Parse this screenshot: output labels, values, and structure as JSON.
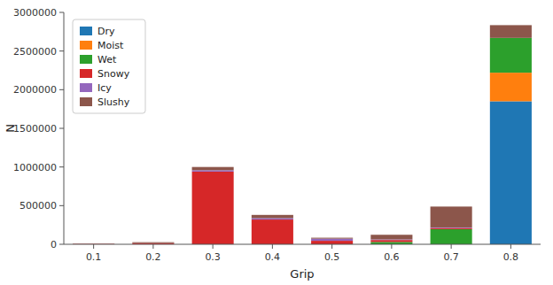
{
  "chart_data": {
    "type": "bar",
    "stacked": true,
    "categories": [
      "0.1",
      "0.2",
      "0.3",
      "0.4",
      "0.5",
      "0.6",
      "0.7",
      "0.8"
    ],
    "series": [
      {
        "name": "Dry",
        "color": "#1f77b4",
        "values": [
          0,
          0,
          0,
          0,
          0,
          0,
          0,
          1850000
        ]
      },
      {
        "name": "Moist",
        "color": "#ff7f0e",
        "values": [
          0,
          0,
          0,
          0,
          0,
          0,
          0,
          370000
        ]
      },
      {
        "name": "Wet",
        "color": "#2ca02c",
        "values": [
          0,
          0,
          0,
          0,
          0,
          30000,
          195000,
          450000
        ]
      },
      {
        "name": "Snowy",
        "color": "#d62728",
        "values": [
          5000,
          15000,
          940000,
          320000,
          45000,
          25000,
          15000,
          0
        ]
      },
      {
        "name": "Icy",
        "color": "#9467bd",
        "values": [
          0,
          0,
          18000,
          18000,
          28000,
          8000,
          8000,
          0
        ]
      },
      {
        "name": "Slushy",
        "color": "#8c564b",
        "values": [
          4000,
          12000,
          42000,
          42000,
          12000,
          60000,
          270000,
          165000
        ]
      }
    ],
    "xlabel": "Grip",
    "ylabel": "N",
    "ylim": [
      0,
      3000000
    ],
    "yticks": [
      0,
      500000,
      1000000,
      1500000,
      2000000,
      2500000,
      3000000
    ],
    "grid": false,
    "legend": "upper-left"
  }
}
